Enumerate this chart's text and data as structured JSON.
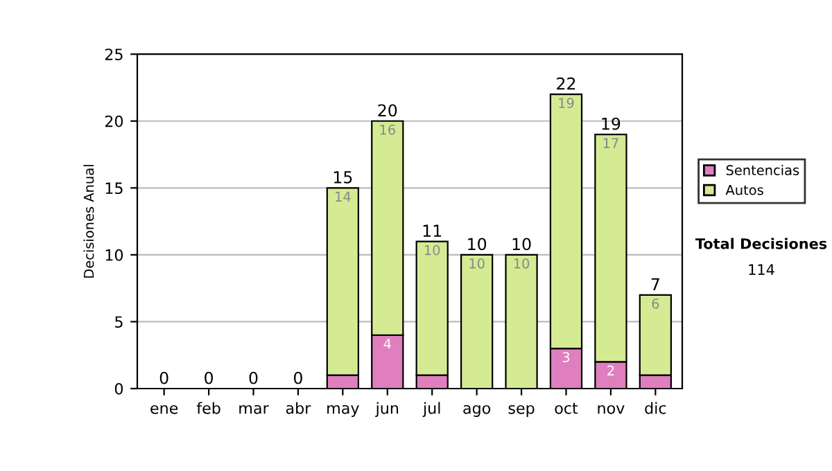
{
  "chart_data": {
    "type": "bar",
    "stacked": true,
    "ylabel": "Decisiones Anual",
    "categories": [
      "ene",
      "feb",
      "mar",
      "abr",
      "may",
      "jun",
      "jul",
      "ago",
      "sep",
      "oct",
      "nov",
      "dic"
    ],
    "series": [
      {
        "name": "Sentencias",
        "color": "#df7fbf",
        "values": [
          0,
          0,
          0,
          0,
          1,
          4,
          1,
          0,
          0,
          3,
          2,
          1
        ],
        "value_labels": [
          null,
          null,
          null,
          null,
          null,
          "4",
          null,
          null,
          null,
          "3",
          "2",
          null
        ]
      },
      {
        "name": "Autos",
        "color": "#d4eb94",
        "values": [
          0,
          0,
          0,
          0,
          14,
          16,
          10,
          10,
          10,
          19,
          17,
          6
        ],
        "value_labels": [
          null,
          null,
          null,
          null,
          "14",
          "16",
          "10",
          "10",
          "10",
          "19",
          "17",
          "6"
        ]
      }
    ],
    "totals": [
      "0",
      "0",
      "0",
      "0",
      "15",
      "20",
      "11",
      "10",
      "10",
      "22",
      "19",
      "7"
    ],
    "ylim": [
      0,
      25
    ],
    "yticks": [
      0,
      5,
      10,
      15,
      20,
      25
    ],
    "grid": "y",
    "legend": "right",
    "annotations": [
      "Total Decisiones",
      "114"
    ]
  }
}
